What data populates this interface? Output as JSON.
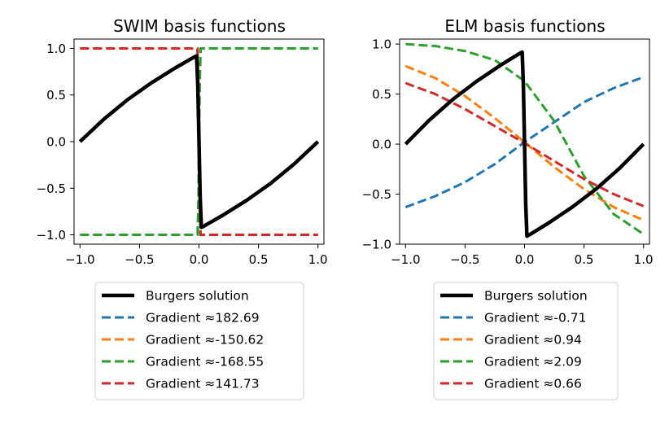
{
  "chart_data": [
    {
      "type": "line",
      "title": "SWIM basis functions",
      "xlabel": "",
      "ylabel": "",
      "xlim": [
        -1.05,
        1.05
      ],
      "ylim": [
        -1.1,
        1.1
      ],
      "xticks": [
        -1.0,
        -0.5,
        0.0,
        0.5,
        1.0
      ],
      "xtick_labels": [
        "−1.0",
        "−0.5",
        "0.0",
        "0.5",
        "1.0"
      ],
      "yticks": [
        1.0,
        0.5,
        0.0,
        -0.5,
        -1.0
      ],
      "ytick_labels": [
        "1.0",
        "0.5",
        "0.0",
        "−0.5",
        "−1.0"
      ],
      "grid": false,
      "legend_placement": "below",
      "series": [
        {
          "name": "Burgers solution",
          "color": "#000000",
          "style": "solid",
          "x": [
            -1.0,
            -0.8,
            -0.6,
            -0.4,
            -0.2,
            -0.05,
            -0.02,
            -0.01,
            0.0,
            0.01,
            0.02,
            0.05,
            0.2,
            0.4,
            0.6,
            0.8,
            1.0
          ],
          "y": [
            0.0,
            0.24,
            0.45,
            0.63,
            0.79,
            0.9,
            0.92,
            0.6,
            0.0,
            -0.6,
            -0.92,
            -0.9,
            -0.79,
            -0.63,
            -0.45,
            -0.24,
            0.0
          ]
        },
        {
          "name": "Gradient ≈182.69",
          "color": "#1f77b4",
          "style": "dashed",
          "x": [
            -1.0,
            -0.012,
            -0.004,
            0.0,
            0.004,
            0.012,
            1.0
          ],
          "y": [
            -1.0,
            -1.0,
            -0.6,
            0.0,
            0.6,
            1.0,
            1.0
          ]
        },
        {
          "name": "Gradient ≈-150.62",
          "color": "#ff7f0e",
          "style": "dashed",
          "x": [
            -1.0,
            -0.014,
            -0.005,
            0.0,
            0.005,
            0.014,
            1.0
          ],
          "y": [
            1.0,
            1.0,
            0.6,
            0.0,
            -0.6,
            -1.0,
            -1.0
          ]
        },
        {
          "name": "Gradient ≈-168.55",
          "color": "#2ca02c",
          "style": "dashed",
          "x": [
            -1.0,
            -0.01,
            -0.004,
            0.0,
            0.006,
            0.014,
            1.0
          ],
          "y": [
            -1.0,
            -1.0,
            -0.6,
            0.0,
            0.6,
            1.0,
            1.0
          ]
        },
        {
          "name": "Gradient ≈141.73",
          "color": "#d62728",
          "style": "dashed",
          "x": [
            -1.0,
            -0.013,
            -0.005,
            0.0,
            0.005,
            0.013,
            1.0
          ],
          "y": [
            1.0,
            1.0,
            0.6,
            0.0,
            -0.6,
            -1.0,
            -1.0
          ]
        }
      ]
    },
    {
      "type": "line",
      "title": "ELM basis functions",
      "xlabel": "",
      "ylabel": "",
      "xlim": [
        -1.05,
        1.05
      ],
      "ylim": [
        -1.0,
        1.05
      ],
      "xticks": [
        -1.0,
        -0.5,
        0.0,
        0.5,
        1.0
      ],
      "xtick_labels": [
        "−1.0",
        "−0.5",
        "0.0",
        "0.5",
        "1.0"
      ],
      "yticks": [
        1.0,
        0.5,
        0.0,
        -0.5,
        -1.0
      ],
      "ytick_labels": [
        "1.0",
        "0.5",
        "0.0",
        "−0.5",
        "−1.0"
      ],
      "grid": false,
      "legend_placement": "below",
      "series": [
        {
          "name": "Burgers solution",
          "color": "#000000",
          "style": "solid",
          "x": [
            -1.0,
            -0.8,
            -0.6,
            -0.4,
            -0.2,
            -0.05,
            -0.02,
            -0.01,
            0.0,
            0.01,
            0.02,
            0.05,
            0.2,
            0.4,
            0.6,
            0.8,
            1.0
          ],
          "y": [
            0.0,
            0.24,
            0.45,
            0.63,
            0.79,
            0.9,
            0.92,
            0.6,
            0.0,
            -0.6,
            -0.92,
            -0.9,
            -0.79,
            -0.63,
            -0.45,
            -0.24,
            0.0
          ]
        },
        {
          "name": "Gradient ≈-0.71",
          "color": "#1f77b4",
          "style": "dashed",
          "x": [
            -1.0,
            -0.75,
            -0.5,
            -0.25,
            0.0,
            0.25,
            0.5,
            0.75,
            1.0
          ],
          "y": [
            -0.63,
            -0.52,
            -0.38,
            -0.2,
            0.02,
            0.22,
            0.42,
            0.56,
            0.67
          ]
        },
        {
          "name": "Gradient ≈0.94",
          "color": "#ff7f0e",
          "style": "dashed",
          "x": [
            -1.0,
            -0.75,
            -0.5,
            -0.25,
            0.0,
            0.25,
            0.5,
            0.75,
            1.0
          ],
          "y": [
            0.78,
            0.66,
            0.48,
            0.26,
            0.02,
            -0.23,
            -0.45,
            -0.63,
            -0.76
          ]
        },
        {
          "name": "Gradient ≈2.09",
          "color": "#2ca02c",
          "style": "dashed",
          "x": [
            -1.0,
            -0.75,
            -0.5,
            -0.25,
            0.0,
            0.25,
            0.5,
            0.75,
            1.0
          ],
          "y": [
            1.0,
            0.98,
            0.93,
            0.84,
            0.63,
            0.23,
            -0.32,
            -0.7,
            -0.9
          ]
        },
        {
          "name": "Gradient ≈0.66",
          "color": "#d62728",
          "style": "dashed",
          "x": [
            -1.0,
            -0.75,
            -0.5,
            -0.25,
            0.0,
            0.25,
            0.5,
            0.75,
            1.0
          ],
          "y": [
            0.61,
            0.5,
            0.35,
            0.18,
            0.01,
            -0.17,
            -0.35,
            -0.5,
            -0.62
          ]
        }
      ]
    }
  ]
}
